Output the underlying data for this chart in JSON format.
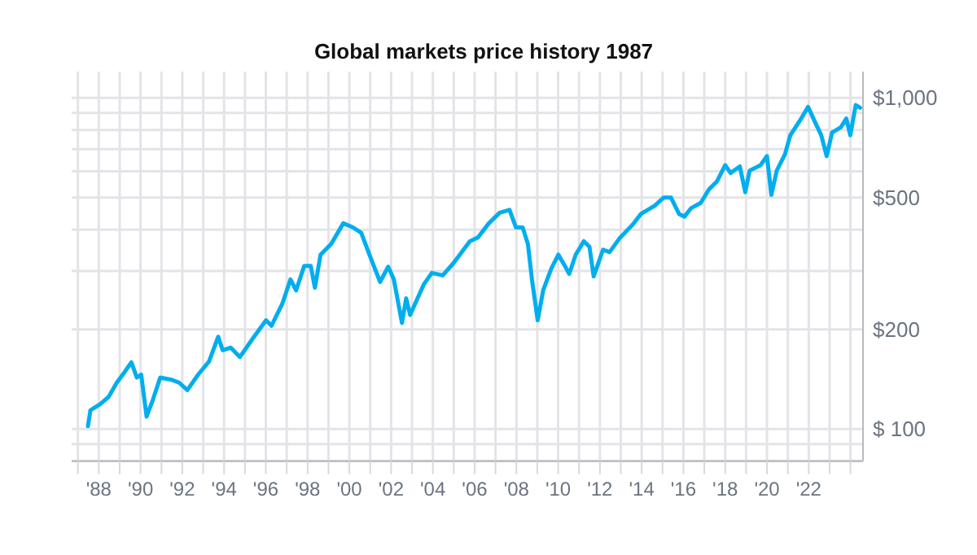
{
  "chart_data": {
    "type": "line",
    "title": "Global markets price history 1987",
    "x": [
      1987.48,
      1987.6,
      1988.08,
      1988.47,
      1988.86,
      1989.25,
      1989.56,
      1989.82,
      1990.03,
      1990.29,
      1990.6,
      1990.94,
      1991.46,
      1991.85,
      1992.24,
      1992.76,
      1993.28,
      1993.72,
      1993.93,
      1994.32,
      1994.76,
      1995.36,
      1996.01,
      1996.27,
      1996.79,
      1997.18,
      1997.45,
      1997.84,
      1998.15,
      1998.35,
      1998.62,
      1999.13,
      1999.71,
      2000.18,
      2000.57,
      2000.96,
      2001.47,
      2001.86,
      2002.13,
      2002.52,
      2002.72,
      2002.91,
      2003.56,
      2003.95,
      2004.47,
      2004.99,
      2005.77,
      2006.16,
      2006.68,
      2007.2,
      2007.67,
      2007.98,
      2008.3,
      2008.55,
      2008.76,
      2009.02,
      2009.28,
      2009.67,
      2010.01,
      2010.32,
      2010.53,
      2010.84,
      2011.23,
      2011.5,
      2011.7,
      2012.15,
      2012.46,
      2012.93,
      2013.57,
      2013.96,
      2014.62,
      2015.06,
      2015.4,
      2015.79,
      2016.05,
      2016.36,
      2016.83,
      2017.22,
      2017.61,
      2018.0,
      2018.26,
      2018.7,
      2018.96,
      2019.17,
      2019.69,
      2020.0,
      2020.21,
      2020.47,
      2020.86,
      2021.12,
      2021.64,
      2021.97,
      2022.29,
      2022.6,
      2022.86,
      2023.12,
      2023.54,
      2023.8,
      2023.99,
      2024.25,
      2024.46
    ],
    "series": [
      {
        "color": "#00aeef",
        "values": [
          102,
          114,
          119,
          125,
          138,
          149,
          159,
          143,
          146,
          109,
          123,
          143,
          141,
          138,
          131,
          146,
          160,
          190,
          173,
          176,
          165,
          187,
          213,
          205,
          239,
          283,
          262,
          311,
          311,
          267,
          336,
          362,
          418,
          406,
          391,
          336,
          278,
          309,
          283,
          209,
          248,
          221,
          273,
          296,
          291,
          317,
          369,
          379,
          418,
          450,
          459,
          406,
          406,
          362,
          278,
          213,
          262,
          305,
          336,
          311,
          294,
          336,
          369,
          355,
          289,
          348,
          342,
          376,
          414,
          446,
          472,
          500,
          500,
          446,
          438,
          464,
          482,
          529,
          560,
          626,
          593,
          621,
          519,
          603,
          626,
          667,
          509,
          603,
          675,
          771,
          866,
          939,
          848,
          771,
          667,
          786,
          815,
          866,
          771,
          951,
          933
        ]
      }
    ],
    "xlim": [
      1986.7,
      2024.6
    ],
    "xticks": [
      {
        "value": 1987,
        "label": null
      },
      {
        "value": 1988,
        "label": "'88"
      },
      {
        "value": 1989,
        "label": null
      },
      {
        "value": 1990,
        "label": "'90"
      },
      {
        "value": 1991,
        "label": null
      },
      {
        "value": 1992,
        "label": "'92"
      },
      {
        "value": 1993,
        "label": null
      },
      {
        "value": 1994,
        "label": "'94"
      },
      {
        "value": 1995,
        "label": null
      },
      {
        "value": 1996,
        "label": "'96"
      },
      {
        "value": 1997,
        "label": null
      },
      {
        "value": 1998,
        "label": "'98"
      },
      {
        "value": 1999,
        "label": null
      },
      {
        "value": 2000,
        "label": "'00"
      },
      {
        "value": 2001,
        "label": null
      },
      {
        "value": 2002,
        "label": "'02"
      },
      {
        "value": 2003,
        "label": null
      },
      {
        "value": 2004,
        "label": "'04"
      },
      {
        "value": 2005,
        "label": null
      },
      {
        "value": 2006,
        "label": "'06"
      },
      {
        "value": 2007,
        "label": null
      },
      {
        "value": 2008,
        "label": "'08"
      },
      {
        "value": 2009,
        "label": null
      },
      {
        "value": 2010,
        "label": "'10"
      },
      {
        "value": 2011,
        "label": null
      },
      {
        "value": 2012,
        "label": "'12"
      },
      {
        "value": 2013,
        "label": null
      },
      {
        "value": 2014,
        "label": "'14"
      },
      {
        "value": 2015,
        "label": null
      },
      {
        "value": 2016,
        "label": "'16"
      },
      {
        "value": 2017,
        "label": null
      },
      {
        "value": 2018,
        "label": "'18"
      },
      {
        "value": 2019,
        "label": null
      },
      {
        "value": 2020,
        "label": "'20"
      },
      {
        "value": 2021,
        "label": null
      },
      {
        "value": 2022,
        "label": "'22"
      },
      {
        "value": 2023,
        "label": null
      },
      {
        "value": 2024,
        "label": null
      }
    ],
    "ylim": [
      80,
      1200
    ],
    "log": true,
    "yticks": [
      {
        "value": 80,
        "label": null
      },
      {
        "value": 90,
        "label": null
      },
      {
        "value": 100,
        "label": "$ 100"
      },
      {
        "value": 200,
        "label": "$200"
      },
      {
        "value": 300,
        "label": null
      },
      {
        "value": 400,
        "label": null
      },
      {
        "value": 500,
        "label": "$500"
      },
      {
        "value": 600,
        "label": null
      },
      {
        "value": 700,
        "label": null
      },
      {
        "value": 800,
        "label": null
      },
      {
        "value": 900,
        "label": null
      },
      {
        "value": 1000,
        "label": "$1,000"
      }
    ],
    "grid": true,
    "marker": "none",
    "line_style": "solid"
  }
}
